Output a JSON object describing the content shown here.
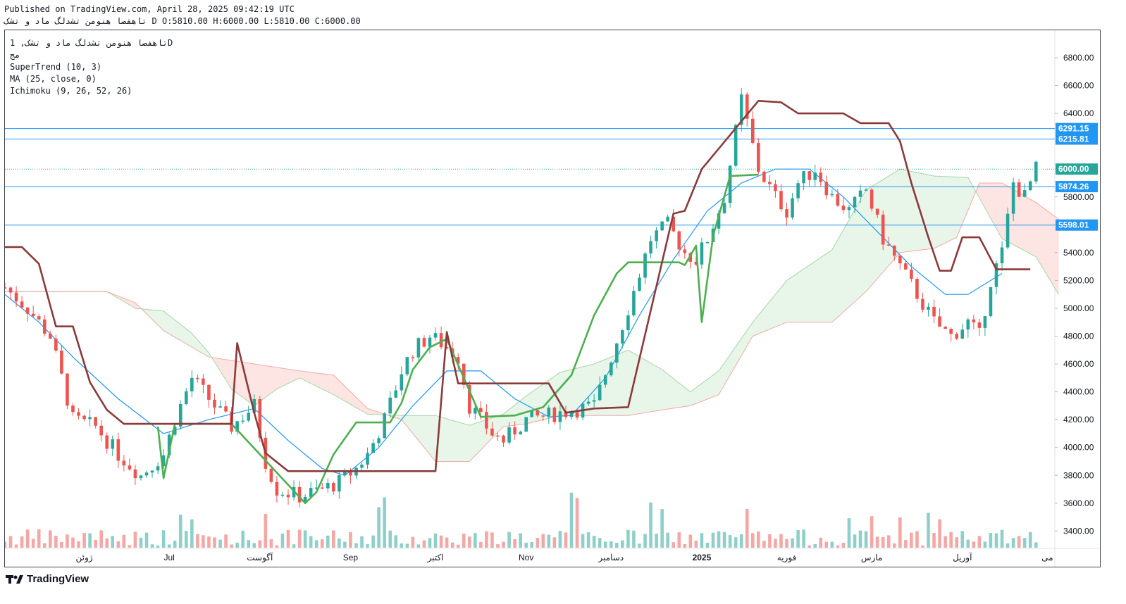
{
  "header": {
    "published": "Published on TradingView.com, April 28, 2025 09:42:19 UTC",
    "symbol_name": "تاهفصا هنومن تشدلگ ماد و تشک",
    "ohlc": "D O:5810.00 H:6000.00 L:5810.00 C:6000.00"
  },
  "legend": {
    "symbol": "تاهفصا هنومن تشدلگ ماد و تشک, 1D",
    "exchange": "مج",
    "supertrend": "SuperTrend (10, 3)",
    "ma": "MA (25, close, 0)",
    "ichimoku": "Ichimoku (9, 26, 52, 26)"
  },
  "brand": {
    "name": "TradingView",
    "icon": "tradingview-logo-icon"
  },
  "colors": {
    "up": "#26a69a",
    "down": "#ef5350",
    "supertrend_up": "#4caf50",
    "supertrend_down": "#8b3a3a",
    "ma": "#2196f3",
    "hline": "#2196f3",
    "cloud_bull": "#e8f5e9",
    "cloud_bear": "#fde5e3"
  },
  "chart_data": {
    "type": "candlestick",
    "ylim": [
      3300,
      6900
    ],
    "y_ticks": [
      "6800.00",
      "6600.00",
      "6400.00",
      "6200.00",
      "6000.00",
      "5800.00",
      "5600.00",
      "5400.00",
      "5200.00",
      "5000.00",
      "4800.00",
      "4600.00",
      "4400.00",
      "4200.00",
      "4000.00",
      "3800.00",
      "3600.00",
      "3400.00"
    ],
    "x_labels": [
      {
        "label": "ژوئن",
        "day": 14
      },
      {
        "label": "Jul",
        "day": 29
      },
      {
        "label": "آگوست",
        "day": 45
      },
      {
        "label": "Sep",
        "day": 61
      },
      {
        "label": "اکتبر",
        "day": 76
      },
      {
        "label": "Nov",
        "day": 92
      },
      {
        "label": "دسامبر",
        "day": 107
      },
      {
        "label": "2025",
        "day": 123
      },
      {
        "label": "فوریه",
        "day": 138
      },
      {
        "label": "مارس",
        "day": 153
      },
      {
        "label": "آوریل",
        "day": 169
      },
      {
        "label": "می",
        "day": 184
      }
    ],
    "horizontal_levels": [
      6291.15,
      6215.81,
      5874.26,
      5598.01
    ],
    "last_price": 6000.0,
    "price_tags": [
      "6291.15",
      "6215.81",
      "6000.00",
      "5874.26",
      "5598.01"
    ],
    "close_series": [
      [
        0,
        5150
      ],
      [
        4,
        5000
      ],
      [
        8,
        4800
      ],
      [
        12,
        4200
      ],
      [
        16,
        4150
      ],
      [
        20,
        3950
      ],
      [
        24,
        3800
      ],
      [
        28,
        3950
      ],
      [
        30,
        4200
      ],
      [
        33,
        4500
      ],
      [
        36,
        4350
      ],
      [
        40,
        4150
      ],
      [
        44,
        4300
      ],
      [
        46,
        3900
      ],
      [
        48,
        3700
      ],
      [
        52,
        3650
      ],
      [
        56,
        3700
      ],
      [
        59,
        3750
      ],
      [
        62,
        3850
      ],
      [
        64,
        3950
      ],
      [
        67,
        4200
      ],
      [
        70,
        4550
      ],
      [
        72,
        4700
      ],
      [
        75,
        4800
      ],
      [
        77,
        4750
      ],
      [
        80,
        4650
      ],
      [
        82,
        4300
      ],
      [
        84,
        4200
      ],
      [
        86,
        4100
      ],
      [
        88,
        4050
      ],
      [
        92,
        4200
      ],
      [
        98,
        4250
      ],
      [
        104,
        4300
      ],
      [
        110,
        5000
      ],
      [
        114,
        5500
      ],
      [
        117,
        5600
      ],
      [
        120,
        5400
      ],
      [
        122,
        5350
      ],
      [
        124,
        5500
      ],
      [
        127,
        5800
      ],
      [
        130,
        6500
      ],
      [
        133,
        6000
      ],
      [
        136,
        5800
      ],
      [
        138,
        5700
      ],
      [
        140,
        5900
      ],
      [
        143,
        6000
      ],
      [
        146,
        5800
      ],
      [
        149,
        5700
      ],
      [
        152,
        5850
      ],
      [
        155,
        5500
      ],
      [
        158,
        5300
      ],
      [
        161,
        5100
      ],
      [
        164,
        4900
      ],
      [
        167,
        4800
      ],
      [
        170,
        4900
      ],
      [
        172,
        4800
      ],
      [
        174,
        5200
      ],
      [
        176,
        5400
      ],
      [
        178,
        5900
      ],
      [
        180,
        5800
      ],
      [
        182,
        6000
      ]
    ],
    "supertrend_up": [
      [
        27,
        4150
      ],
      [
        28,
        3780
      ],
      [
        30,
        4170
      ],
      [
        40,
        4170
      ],
      [
        53,
        3600
      ],
      [
        55,
        3680
      ],
      [
        58,
        3950
      ],
      [
        62,
        4180
      ],
      [
        68,
        4180
      ],
      [
        70,
        4320
      ],
      [
        72,
        4560
      ],
      [
        75,
        4720
      ],
      [
        78,
        4780
      ],
      [
        84,
        4220
      ],
      [
        90,
        4230
      ],
      [
        95,
        4290
      ],
      [
        100,
        4520
      ],
      [
        104,
        4950
      ],
      [
        108,
        5250
      ],
      [
        110,
        5330
      ],
      [
        119,
        5330
      ],
      [
        120,
        5310
      ],
      [
        122,
        5450
      ],
      [
        123,
        4900
      ],
      [
        125,
        5520
      ],
      [
        128,
        5950
      ],
      [
        133,
        5960
      ]
    ],
    "supertrend_down": [
      [
        0,
        5440
      ],
      [
        3,
        5440
      ],
      [
        6,
        5320
      ],
      [
        9,
        4870
      ],
      [
        12,
        4870
      ],
      [
        15,
        4470
      ],
      [
        18,
        4270
      ],
      [
        21,
        4170
      ],
      [
        26,
        4170
      ],
      [
        27,
        4170
      ],
      [
        28,
        4170
      ],
      [
        33,
        4170
      ],
      [
        40,
        4170
      ],
      [
        41,
        4750
      ],
      [
        44,
        4250
      ],
      [
        46,
        3960
      ],
      [
        50,
        3830
      ],
      [
        52,
        3830
      ],
      [
        76,
        3830
      ],
      [
        78,
        4830
      ],
      [
        80,
        4460
      ],
      [
        90,
        4460
      ],
      [
        96,
        4460
      ],
      [
        99,
        4250
      ],
      [
        104,
        4280
      ],
      [
        110,
        4290
      ],
      [
        118,
        5680
      ],
      [
        120,
        5700
      ],
      [
        123,
        6000
      ],
      [
        133,
        6490
      ],
      [
        137,
        6480
      ],
      [
        140,
        6400
      ],
      [
        148,
        6400
      ],
      [
        151,
        6330
      ],
      [
        156,
        6330
      ],
      [
        158,
        6200
      ],
      [
        160,
        5900
      ],
      [
        163,
        5510
      ],
      [
        165,
        5270
      ],
      [
        167,
        5270
      ],
      [
        169,
        5510
      ],
      [
        172,
        5510
      ],
      [
        175,
        5280
      ],
      [
        181,
        5280
      ]
    ],
    "ma_series": [
      [
        0,
        5100
      ],
      [
        6,
        4900
      ],
      [
        12,
        4650
      ],
      [
        20,
        4350
      ],
      [
        28,
        4100
      ],
      [
        36,
        4200
      ],
      [
        44,
        4280
      ],
      [
        50,
        4050
      ],
      [
        56,
        3850
      ],
      [
        60,
        3800
      ],
      [
        66,
        4000
      ],
      [
        72,
        4300
      ],
      [
        78,
        4550
      ],
      [
        84,
        4550
      ],
      [
        90,
        4350
      ],
      [
        96,
        4220
      ],
      [
        100,
        4230
      ],
      [
        106,
        4500
      ],
      [
        112,
        4950
      ],
      [
        118,
        5350
      ],
      [
        124,
        5700
      ],
      [
        130,
        5900
      ],
      [
        136,
        6000
      ],
      [
        142,
        6000
      ],
      [
        148,
        5800
      ],
      [
        154,
        5550
      ],
      [
        160,
        5300
      ],
      [
        166,
        5100
      ],
      [
        170,
        5100
      ],
      [
        176,
        5250
      ]
    ],
    "cloud_span_a": [
      [
        0,
        5120
      ],
      [
        18,
        5120
      ],
      [
        23,
        5000
      ],
      [
        28,
        4980
      ],
      [
        33,
        4820
      ],
      [
        36,
        4680
      ],
      [
        40,
        4420
      ],
      [
        44,
        4300
      ],
      [
        48,
        4420
      ],
      [
        52,
        4500
      ],
      [
        58,
        4380
      ],
      [
        64,
        4240
      ],
      [
        70,
        4230
      ],
      [
        76,
        4230
      ],
      [
        82,
        4160
      ],
      [
        88,
        4240
      ],
      [
        92,
        4370
      ],
      [
        98,
        4540
      ],
      [
        104,
        4600
      ],
      [
        110,
        4700
      ],
      [
        116,
        4560
      ],
      [
        121,
        4400
      ],
      [
        126,
        4550
      ],
      [
        132,
        4900
      ],
      [
        138,
        5200
      ],
      [
        146,
        5420
      ],
      [
        152,
        5850
      ],
      [
        158,
        6000
      ],
      [
        164,
        5950
      ],
      [
        170,
        5940
      ],
      [
        176,
        5500
      ],
      [
        182,
        5370
      ],
      [
        186,
        5100
      ]
    ],
    "cloud_span_b": [
      [
        0,
        5120
      ],
      [
        18,
        5120
      ],
      [
        23,
        5040
      ],
      [
        28,
        4840
      ],
      [
        36,
        4650
      ],
      [
        44,
        4600
      ],
      [
        52,
        4550
      ],
      [
        58,
        4520
      ],
      [
        64,
        4280
      ],
      [
        70,
        4200
      ],
      [
        76,
        3900
      ],
      [
        82,
        3900
      ],
      [
        88,
        4150
      ],
      [
        92,
        4170
      ],
      [
        98,
        4230
      ],
      [
        104,
        4230
      ],
      [
        110,
        4230
      ],
      [
        116,
        4270
      ],
      [
        121,
        4300
      ],
      [
        126,
        4380
      ],
      [
        132,
        4800
      ],
      [
        138,
        4900
      ],
      [
        146,
        4900
      ],
      [
        152,
        5120
      ],
      [
        158,
        5400
      ],
      [
        164,
        5430
      ],
      [
        168,
        5510
      ],
      [
        172,
        5900
      ],
      [
        176,
        5900
      ],
      [
        182,
        5760
      ],
      [
        186,
        5640
      ]
    ],
    "volume_max": 3300
  }
}
